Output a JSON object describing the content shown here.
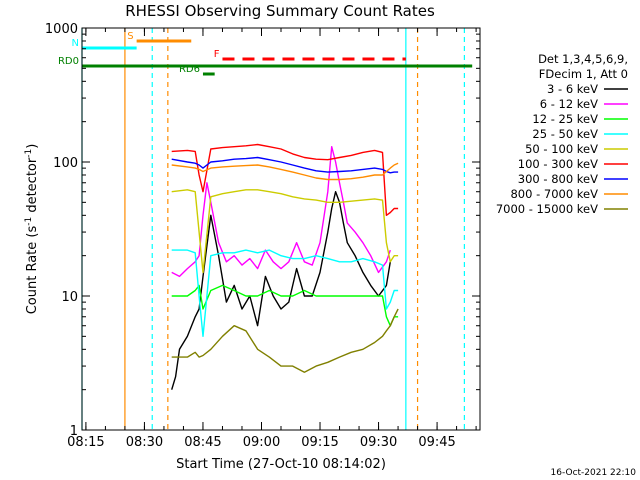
{
  "chart_data": {
    "type": "line",
    "title": "RHESSI Observing Summary Count Rates",
    "xlabel": "Start Time (27-Oct-10 08:14:02)",
    "ylabel": "Count Rate (s",
    "ylabel_sup": "-1",
    "ylabel_tail": " detector",
    "ylabel_sup2": "-1",
    "ylabel_end": ")",
    "yscale": "log",
    "ylim": [
      1,
      1000
    ],
    "xlim_minutes": [
      0,
      102
    ],
    "x_ticks": [
      {
        "label": "08:15",
        "m": 1
      },
      {
        "label": "08:30",
        "m": 16
      },
      {
        "label": "08:45",
        "m": 31
      },
      {
        "label": "09:00",
        "m": 46
      },
      {
        "label": "09:15",
        "m": 61
      },
      {
        "label": "09:30",
        "m": 76
      },
      {
        "label": "09:45",
        "m": 91
      }
    ],
    "y_ticks": [
      {
        "label": "1",
        "v": 1
      },
      {
        "label": "10",
        "v": 10
      },
      {
        "label": "100",
        "v": 100
      },
      {
        "label": "1000",
        "v": 1000
      }
    ],
    "legend_header": [
      "Det 1,3,4,5,6,9,",
      "FDecim 1, Att 0"
    ],
    "legend_position": "right",
    "series": [
      {
        "name": "3 - 6 keV",
        "color": "#000000",
        "x": [
          23,
          24,
          25,
          27,
          29,
          30,
          31,
          33,
          35,
          37,
          39,
          41,
          43,
          45,
          47,
          49,
          51,
          53,
          55,
          57,
          59,
          61,
          63,
          64,
          65,
          66,
          67,
          68,
          70,
          72,
          74,
          76,
          78,
          79
        ],
        "y": [
          2,
          2.5,
          4,
          5,
          7,
          8,
          14,
          40,
          20,
          9,
          12,
          8,
          10,
          6,
          14,
          10,
          8,
          9,
          16,
          10,
          10,
          15,
          30,
          45,
          60,
          50,
          35,
          25,
          20,
          15,
          12,
          10,
          12,
          18
        ]
      },
      {
        "name": "6 - 12 keV",
        "color": "#ff00ff",
        "x": [
          23,
          25,
          27,
          29,
          30,
          31,
          32,
          33,
          35,
          37,
          39,
          41,
          43,
          45,
          47,
          49,
          51,
          53,
          55,
          57,
          59,
          61,
          63,
          64,
          65,
          66,
          67,
          68,
          70,
          72,
          74,
          76,
          78,
          79
        ],
        "y": [
          15,
          14,
          16,
          18,
          20,
          40,
          70,
          50,
          25,
          18,
          20,
          17,
          19,
          16,
          22,
          18,
          16,
          18,
          25,
          18,
          17,
          25,
          60,
          130,
          100,
          70,
          50,
          35,
          30,
          25,
          20,
          15,
          18,
          22
        ]
      },
      {
        "name": "12 - 25 keV",
        "color": "#00ff00",
        "x": [
          23,
          27,
          29,
          30,
          31,
          33,
          36,
          39,
          42,
          45,
          48,
          51,
          54,
          57,
          60,
          63,
          66,
          69,
          72,
          75,
          77,
          78,
          79,
          80,
          81
        ],
        "y": [
          10,
          10,
          11,
          12,
          8,
          11,
          12,
          11,
          10,
          10,
          11,
          10,
          10,
          11,
          10,
          10,
          10,
          10,
          10,
          10,
          10,
          7,
          6,
          7,
          7
        ]
      },
      {
        "name": "25 - 50 keV",
        "color": "#00ffff",
        "x": [
          23,
          27,
          29,
          30,
          31,
          33,
          36,
          39,
          42,
          45,
          48,
          51,
          54,
          57,
          60,
          63,
          66,
          69,
          72,
          75,
          77,
          78,
          79,
          80,
          81
        ],
        "y": [
          22,
          22,
          21,
          10,
          5,
          20,
          21,
          21,
          22,
          21,
          22,
          20,
          19,
          19,
          20,
          19,
          18,
          18,
          19,
          18,
          17,
          8,
          9,
          11,
          11
        ]
      },
      {
        "name": "50 - 100 keV",
        "color": "#cccc00",
        "x": [
          23,
          27,
          29,
          30,
          31,
          33,
          36,
          39,
          42,
          45,
          48,
          51,
          54,
          57,
          60,
          63,
          66,
          69,
          72,
          75,
          77,
          78,
          79,
          80,
          81
        ],
        "y": [
          60,
          62,
          60,
          30,
          15,
          55,
          58,
          60,
          62,
          62,
          60,
          58,
          55,
          53,
          52,
          50,
          50,
          51,
          52,
          53,
          52,
          25,
          18,
          20,
          20
        ]
      },
      {
        "name": "100 - 300 keV",
        "color": "#ff0000",
        "x": [
          23,
          27,
          29,
          30,
          31,
          33,
          36,
          39,
          42,
          45,
          48,
          51,
          54,
          57,
          60,
          63,
          66,
          69,
          72,
          75,
          77,
          78,
          79,
          80,
          81
        ],
        "y": [
          120,
          122,
          120,
          80,
          60,
          125,
          128,
          130,
          132,
          135,
          130,
          125,
          115,
          108,
          105,
          104,
          108,
          112,
          118,
          122,
          118,
          40,
          42,
          45,
          45
        ]
      },
      {
        "name": "300 - 800 keV",
        "color": "#0000ff",
        "x": [
          23,
          27,
          29,
          30,
          31,
          33,
          36,
          39,
          42,
          45,
          48,
          51,
          54,
          57,
          60,
          63,
          66,
          69,
          72,
          75,
          77,
          78,
          79,
          80,
          81
        ],
        "y": [
          105,
          100,
          98,
          95,
          90,
          100,
          102,
          105,
          106,
          108,
          104,
          100,
          95,
          90,
          86,
          84,
          85,
          86,
          88,
          90,
          88,
          85,
          83,
          84,
          84
        ]
      },
      {
        "name": "800 - 7000 keV",
        "color": "#ff8c00",
        "x": [
          23,
          27,
          29,
          30,
          31,
          33,
          36,
          39,
          42,
          45,
          48,
          51,
          54,
          57,
          60,
          63,
          66,
          69,
          72,
          75,
          77,
          78,
          79,
          80,
          81
        ],
        "y": [
          95,
          92,
          90,
          88,
          85,
          90,
          92,
          93,
          94,
          95,
          92,
          88,
          84,
          80,
          76,
          74,
          74,
          75,
          77,
          80,
          80,
          85,
          90,
          95,
          98
        ]
      },
      {
        "name": "7000 - 15000 keV",
        "color": "#808000",
        "x": [
          23,
          27,
          29,
          30,
          31,
          33,
          36,
          39,
          42,
          45,
          48,
          51,
          54,
          57,
          60,
          63,
          66,
          69,
          72,
          75,
          77,
          78,
          79,
          80,
          81
        ],
        "y": [
          3.5,
          3.5,
          3.8,
          3.5,
          3.6,
          4,
          5,
          6,
          5.5,
          4,
          3.5,
          3,
          3,
          2.7,
          3,
          3.2,
          3.5,
          3.8,
          4,
          4.5,
          5,
          5.5,
          6,
          7,
          8
        ]
      }
    ],
    "flags": [
      {
        "label": "S",
        "color": "#ff8c00",
        "m0": 14,
        "m1": 28,
        "style": "solid"
      },
      {
        "label": "N",
        "color": "#00ffff",
        "m0": 0,
        "m1": 14,
        "style": "solid"
      },
      {
        "label": "F",
        "color": "#ff0000",
        "m0": 36,
        "m1": 83,
        "style": "dashed"
      },
      {
        "label": "RD0",
        "color": "#008000",
        "m0": 0,
        "m1": 100,
        "style": "solid"
      },
      {
        "label": "RD6",
        "color": "#008000",
        "m0": 31,
        "m1": 34,
        "style": "solid"
      }
    ],
    "vertical_markers": [
      {
        "m": 0,
        "color": "#00ffff",
        "style": "solid"
      },
      {
        "m": 11,
        "color": "#ff8c00",
        "style": "solid"
      },
      {
        "m": 18,
        "color": "#00ffff",
        "style": "dashed"
      },
      {
        "m": 22,
        "color": "#ff8c00",
        "style": "dashed"
      },
      {
        "m": 83,
        "color": "#00ffff",
        "style": "solid"
      },
      {
        "m": 86,
        "color": "#ff8c00",
        "style": "dashed"
      },
      {
        "m": 98,
        "color": "#00ffff",
        "style": "dashed"
      }
    ],
    "footer_date": "16-Oct-2021 22:10"
  }
}
